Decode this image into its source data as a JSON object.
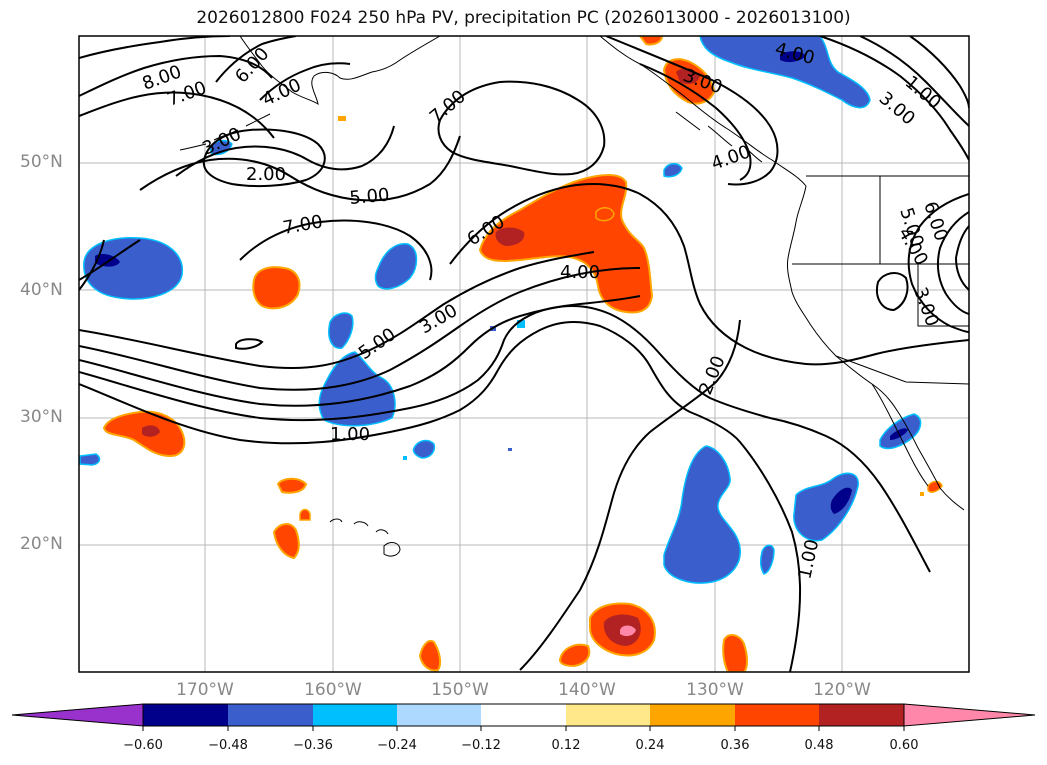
{
  "title": "2026012800 F024 250 hPa PV, precipitation PC (2026013000 - 2026013100)",
  "latitude_labels": [
    "50°N",
    "40°N",
    "30°N",
    "20°N"
  ],
  "longitude_labels": [
    "170°W",
    "160°W",
    "150°W",
    "140°W",
    "130°W",
    "120°W"
  ],
  "contour_labels": [
    "8.00",
    "7.00",
    "6.00",
    "4.00",
    "3.00",
    "2.00",
    "5.00",
    "7.00",
    "7.00",
    "6.00",
    "4.00",
    "5.00",
    "3.00",
    "2.00",
    "1.00",
    "1.00",
    "4.00",
    "4.00",
    "3.00",
    "1.00",
    "3.00",
    "6.00",
    "5.00",
    "4.00",
    "3.00"
  ],
  "colorbar": {
    "ticks": [
      "−0.60",
      "−0.48",
      "−0.36",
      "−0.24",
      "−0.12",
      "0.12",
      "0.24",
      "0.36",
      "0.48",
      "0.60"
    ],
    "colors": [
      "#9932cc",
      "#00008b",
      "#3a5fcd",
      "#00bfff",
      "#add8ff",
      "#ffffff",
      "#ffe88a",
      "#ffa500",
      "#ff4500",
      "#b22222",
      "#ff88aa"
    ]
  },
  "palette": {
    "deep_blue": "#00008b",
    "mid_blue": "#3a5fcd",
    "cyan": "#00bfff",
    "light_blue": "#add8ff",
    "yellow": "#ffe88a",
    "orange": "#ffa500",
    "red_orange": "#ff4500",
    "dark_red": "#b22222",
    "pink": "#ff88aa"
  }
}
